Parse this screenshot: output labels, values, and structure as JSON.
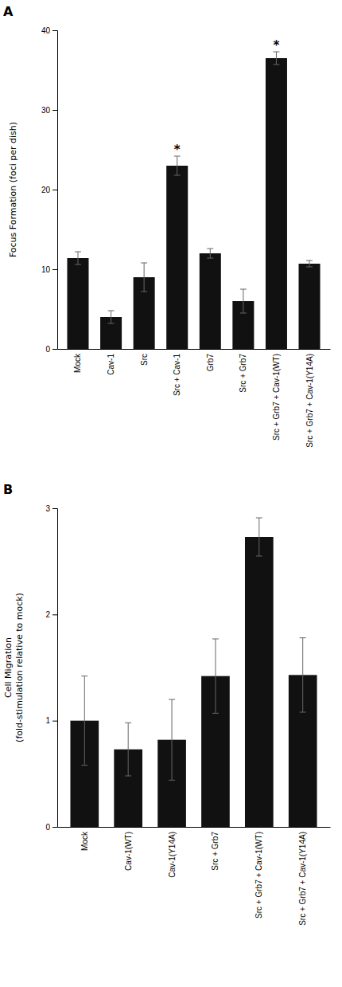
{
  "chart_data": [
    {
      "type": "bar",
      "title": "A",
      "categories": [
        "Mock",
        "Cav-1",
        "Src",
        "Src + Cav-1",
        "Grb7",
        "Src + Grb7",
        "Src + Grb7 + Cav-1(WT)",
        "Src + Grb7 + Cav-1(Y14A)"
      ],
      "values": [
        11.4,
        4.0,
        9.0,
        23.0,
        12.0,
        6.0,
        36.5,
        10.7
      ],
      "errors": [
        0.8,
        0.8,
        1.8,
        1.2,
        0.6,
        1.5,
        0.8,
        0.4
      ],
      "annotations": [
        null,
        null,
        null,
        "*",
        null,
        null,
        "*",
        null
      ],
      "ylabel": "Focus Formation (foci per dish)",
      "ylim": [
        0,
        40
      ],
      "yticks": [
        0,
        10,
        20,
        30,
        40
      ],
      "color": "#111111"
    },
    {
      "type": "bar",
      "title": "B",
      "categories": [
        "Mock",
        "Cav-1(WT)",
        "Cav-1(Y14A)",
        "Src + Grb7",
        "Src + Grb7 + Cav-1(WT)",
        "Src + Grb7 + Cav-1(Y14A)"
      ],
      "values": [
        1.0,
        0.73,
        0.82,
        1.42,
        2.73,
        1.43
      ],
      "errors": [
        0.42,
        0.25,
        0.38,
        0.35,
        0.18,
        0.35
      ],
      "ylabel": [
        "Cell Migration",
        "(fold-stimulation relative to mock)"
      ],
      "ylim": [
        0,
        3
      ],
      "yticks": [
        0,
        1,
        2,
        3
      ],
      "color": "#111111"
    }
  ]
}
